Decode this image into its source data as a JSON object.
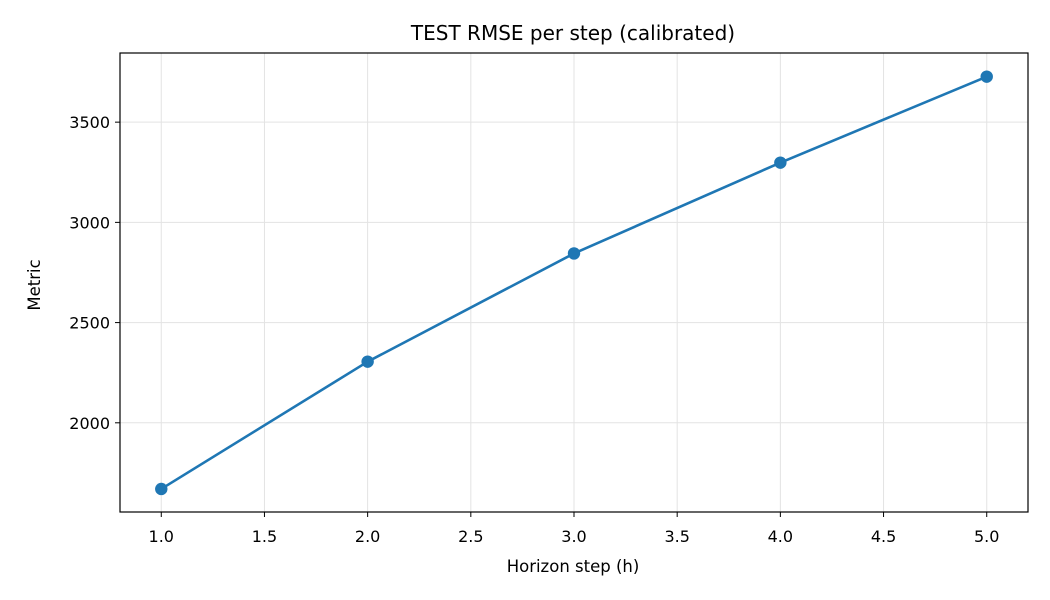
{
  "chart_data": {
    "type": "line",
    "title": "TEST RMSE per step (calibrated)",
    "xlabel": "Horizon step (h)",
    "ylabel": "Metric",
    "x": [
      1.0,
      2.0,
      3.0,
      4.0,
      5.0
    ],
    "series": [
      {
        "values": [
          1670,
          2305,
          2845,
          3298,
          3727
        ],
        "color": "#1f77b4"
      }
    ],
    "xlim": [
      0.8,
      5.2
    ],
    "ylim": [
      1555,
      3845
    ],
    "xticks": [
      1.0,
      1.5,
      2.0,
      2.5,
      3.0,
      3.5,
      4.0,
      4.5,
      5.0
    ],
    "xtick_labels": [
      "1.0",
      "1.5",
      "2.0",
      "2.5",
      "3.0",
      "3.5",
      "4.0",
      "4.5",
      "5.0"
    ],
    "yticks": [
      2000,
      2500,
      3000,
      3500
    ],
    "ytick_labels": [
      "2000",
      "2500",
      "3000",
      "3500"
    ],
    "grid": true,
    "markers": "circle"
  }
}
